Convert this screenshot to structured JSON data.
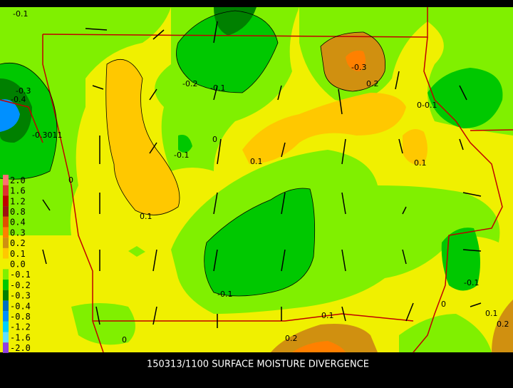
{
  "title": "150313/1100 SURFACE MOISTURE DIVERGENCE",
  "legend": [
    {
      "label": "2.0",
      "color": "#ff7070"
    },
    {
      "label": "1.6",
      "color": "#e03030"
    },
    {
      "label": "1.2",
      "color": "#c00000"
    },
    {
      "label": "0.8",
      "color": "#a01010"
    },
    {
      "label": "0.4",
      "color": "#e05000"
    },
    {
      "label": "0.3",
      "color": "#ff8000"
    },
    {
      "label": "0.2",
      "color": "#d09010"
    },
    {
      "label": "0.1",
      "color": "#ffc800"
    },
    {
      "label": "0.0",
      "color": "#f0f000"
    },
    {
      "label": "-0.1",
      "color": "#80f000"
    },
    {
      "label": "-0.2",
      "color": "#00c800"
    },
    {
      "label": "-0.3",
      "color": "#008000"
    },
    {
      "label": "-0.4",
      "color": "#0070c0"
    },
    {
      "label": "-0.8",
      "color": "#0090ff"
    },
    {
      "label": "-1.2",
      "color": "#00d0ff"
    },
    {
      "label": "-1.6",
      "color": "#60e0ff"
    },
    {
      "label": "-2.0",
      "color": "#9040e0"
    }
  ],
  "contour_labels": [
    "-0.1",
    "-0.2",
    "-0.1",
    "-0.3",
    "0.2",
    "-0.3",
    "-0.4",
    "-0.3011",
    "0-0.1",
    "0",
    "-0.1",
    "0.1",
    "0.1",
    "0",
    "0.1",
    "-0.1",
    "-0.1",
    "0",
    "0.1",
    "0.1",
    "0.2",
    "0.2",
    "0"
  ]
}
